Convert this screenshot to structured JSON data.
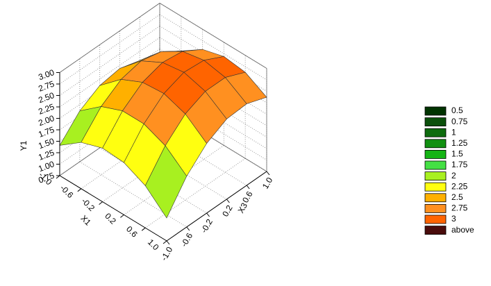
{
  "chart_data": {
    "type": "surface3d",
    "x_label": "X1",
    "y_label": "X3",
    "z_label": "Y1",
    "x": [
      -1,
      -0.6,
      -0.2,
      0.2,
      0.6,
      1
    ],
    "y": [
      -1,
      -0.6,
      -0.2,
      0.2,
      0.6,
      1
    ],
    "z": [
      [
        1.41,
        1.86,
        2.11,
        2.18,
        2.05,
        1.73
      ],
      [
        1.76,
        2.24,
        2.53,
        2.63,
        2.53,
        2.24
      ],
      [
        1.92,
        2.43,
        2.75,
        2.88,
        2.82,
        2.56
      ],
      [
        1.89,
        2.43,
        2.79,
        2.95,
        2.91,
        2.69
      ],
      [
        1.67,
        2.24,
        2.63,
        2.82,
        2.82,
        2.63
      ],
      [
        1.25,
        1.86,
        2.27,
        2.5,
        2.53,
        2.37
      ]
    ],
    "xlim": [
      -1,
      1
    ],
    "ylim": [
      -1,
      1
    ],
    "zlim": [
      0.75,
      3
    ],
    "xticks": [
      {
        "value": -1,
        "label": "-1.0"
      },
      -0.6,
      -0.2,
      0.2,
      0.6,
      {
        "value": 1,
        "label": "1.0"
      }
    ],
    "yticks": [
      {
        "value": -1,
        "label": "-1.0"
      },
      -0.6,
      -0.2,
      0.2,
      0.6,
      {
        "value": 1,
        "label": "1.0"
      }
    ],
    "zticks": [
      {
        "value": 0.75,
        "label": "0.75"
      },
      {
        "value": 1,
        "label": "1.00"
      },
      {
        "value": 1.25,
        "label": "1.25"
      },
      {
        "value": 1.5,
        "label": "1.50"
      },
      {
        "value": 1.75,
        "label": "1.75"
      },
      {
        "value": 2,
        "label": "2.00"
      },
      {
        "value": 2.25,
        "label": "2.25"
      },
      {
        "value": 2.5,
        "label": "2.50"
      },
      {
        "value": 2.75,
        "label": "2.75"
      },
      {
        "value": 3,
        "label": "3.00"
      }
    ],
    "grid": true,
    "legend": [
      {
        "label": 0.5,
        "color": "#003300"
      },
      {
        "label": 0.75,
        "color": "#0b500b"
      },
      {
        "label": 1,
        "color": "#0e6c0e"
      },
      {
        "label": 1.25,
        "color": "#119011"
      },
      {
        "label": 1.5,
        "color": "#14b414"
      },
      {
        "label": 1.75,
        "color": "#44e044"
      },
      {
        "label": 2,
        "color": "#a8f020"
      },
      {
        "label": 2.25,
        "color": "#ffff10"
      },
      {
        "label": 2.5,
        "color": "#ffb000"
      },
      {
        "label": 2.75,
        "color": "#ff9020"
      },
      {
        "label": 3,
        "color": "#ff6400"
      },
      {
        "label": "above",
        "color": "#4a0c0c"
      }
    ]
  }
}
